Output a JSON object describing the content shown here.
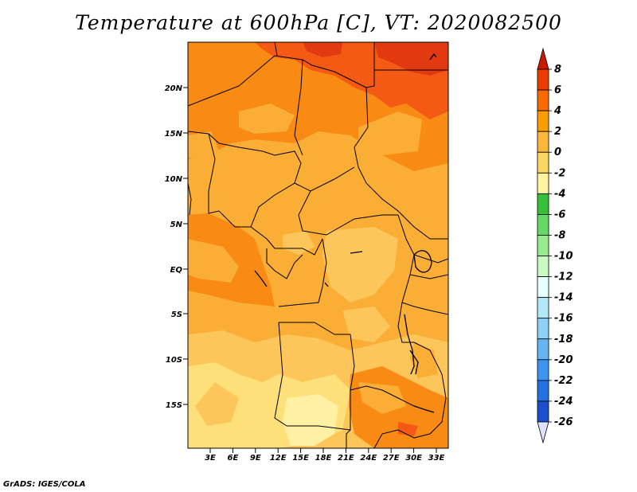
{
  "title": "Temperature at 600hPa [C], VT: 2020082500",
  "credit": "GrADS: IGES/COLA",
  "map": {
    "lat_labels": [
      "20N",
      "15N",
      "10N",
      "5N",
      "EQ",
      "5S",
      "10S",
      "15S"
    ],
    "lon_labels": [
      "3E",
      "6E",
      "9E",
      "12E",
      "15E",
      "18E",
      "21E",
      "24E",
      "27E",
      "30E",
      "33E"
    ]
  },
  "colorbar": {
    "labels": [
      "8",
      "6",
      "4",
      "2",
      "0",
      "-2",
      "-4",
      "-6",
      "-8",
      "-10",
      "-12",
      "-14",
      "-16",
      "-18",
      "-20",
      "-22",
      "-24",
      "-26"
    ],
    "colors": [
      "#cc1a00",
      "#ee3c00",
      "#fa6a00",
      "#fb9c00",
      "#fcb73a",
      "#fdd561",
      "#fff3a0",
      "#35c037",
      "#66d865",
      "#97ec8f",
      "#c8fac2",
      "#e6ffff",
      "#b3e8fb",
      "#8ed0f7",
      "#64b5f1",
      "#3c95ee",
      "#2472e2",
      "#1a4fcf",
      "#1a2fae",
      "#0b1581",
      "#e1e1f9"
    ],
    "top_arrow_color": "#cc1a00",
    "bottom_arrow_color": "#e1e1f9"
  },
  "field_colors": {
    "deep_red": "#e23a10",
    "red_orange": "#f45a14",
    "orange_dark": "#f98a14",
    "orange": "#fbae36",
    "light_orange": "#fdc65a",
    "yellow": "#fee07a",
    "pale_yellow": "#fff1a4"
  }
}
